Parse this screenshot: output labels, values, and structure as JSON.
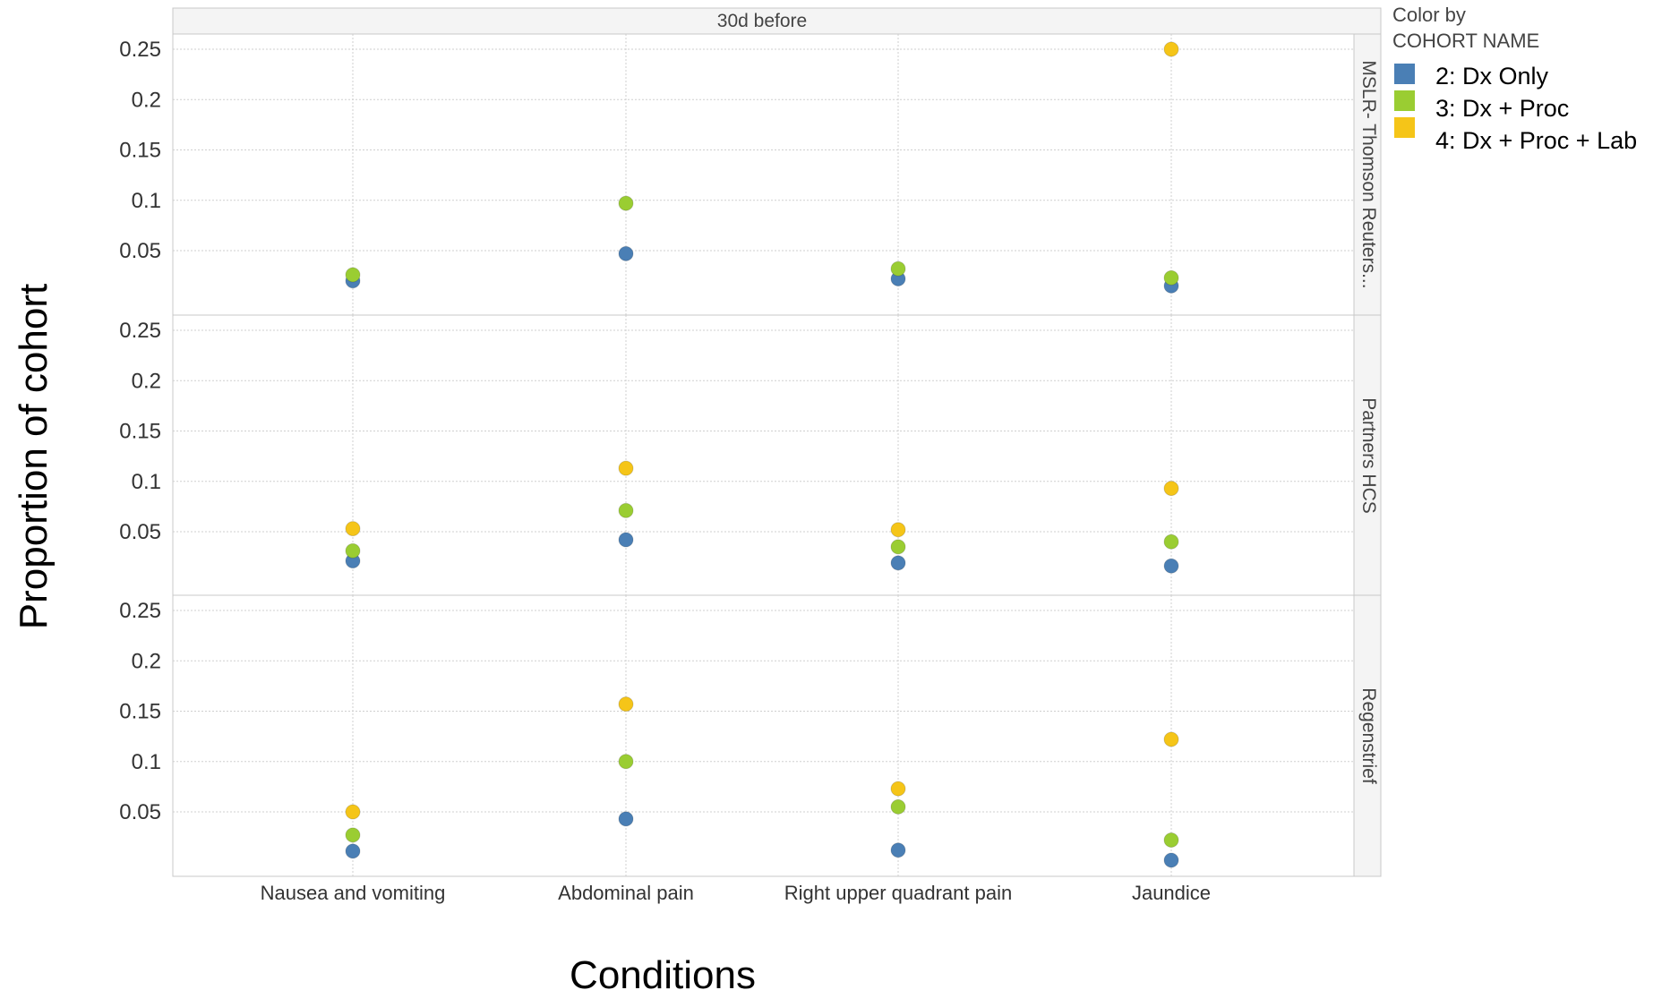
{
  "chart_data": {
    "type": "scatter",
    "column_header": "30d before",
    "xlabel": "Conditions",
    "ylabel": "Proportion of cohort",
    "categories": [
      "Nausea and vomiting",
      "Abdominal pain",
      "Right upper quadrant pain",
      "Jaundice"
    ],
    "y_ticks": [
      "0.25",
      "0.2",
      "0.15",
      "0.1",
      "0.05"
    ],
    "ylim": [
      0,
      0.265
    ],
    "grid": true,
    "legend": {
      "title_line1": "Color by",
      "title_line2": "COHORT  NAME",
      "placement": "top-right",
      "entries": [
        {
          "name": "2: Dx Only",
          "color": "#4a7fb5"
        },
        {
          "name": "3: Dx + Proc",
          "color": "#9acd32"
        },
        {
          "name": "4: Dx + Proc + Lab",
          "color": "#f5c518"
        }
      ]
    },
    "panels": [
      {
        "label": "MSLR- Thomson  Reuters...",
        "series": [
          {
            "name": "2: Dx Only",
            "values": [
              0.02,
              0.047,
              0.022,
              0.015
            ]
          },
          {
            "name": "3: Dx + Proc",
            "values": [
              0.026,
              0.097,
              0.032,
              0.023
            ]
          },
          {
            "name": "4: Dx + Proc + Lab",
            "values": [
              null,
              null,
              null,
              0.25
            ]
          }
        ]
      },
      {
        "label": "Partners HCS",
        "series": [
          {
            "name": "2: Dx Only",
            "values": [
              0.021,
              0.042,
              0.019,
              0.016
            ]
          },
          {
            "name": "3: Dx + Proc",
            "values": [
              0.031,
              0.071,
              0.035,
              0.04
            ]
          },
          {
            "name": "4: Dx + Proc + Lab",
            "values": [
              0.053,
              0.113,
              0.052,
              0.093
            ]
          }
        ]
      },
      {
        "label": "Regenstrief",
        "series": [
          {
            "name": "2: Dx Only",
            "values": [
              0.011,
              0.043,
              0.012,
              0.002
            ]
          },
          {
            "name": "3: Dx + Proc",
            "values": [
              0.027,
              0.1,
              0.055,
              0.022
            ]
          },
          {
            "name": "4: Dx + Proc + Lab",
            "values": [
              0.05,
              0.157,
              0.073,
              0.122
            ]
          }
        ]
      }
    ]
  }
}
